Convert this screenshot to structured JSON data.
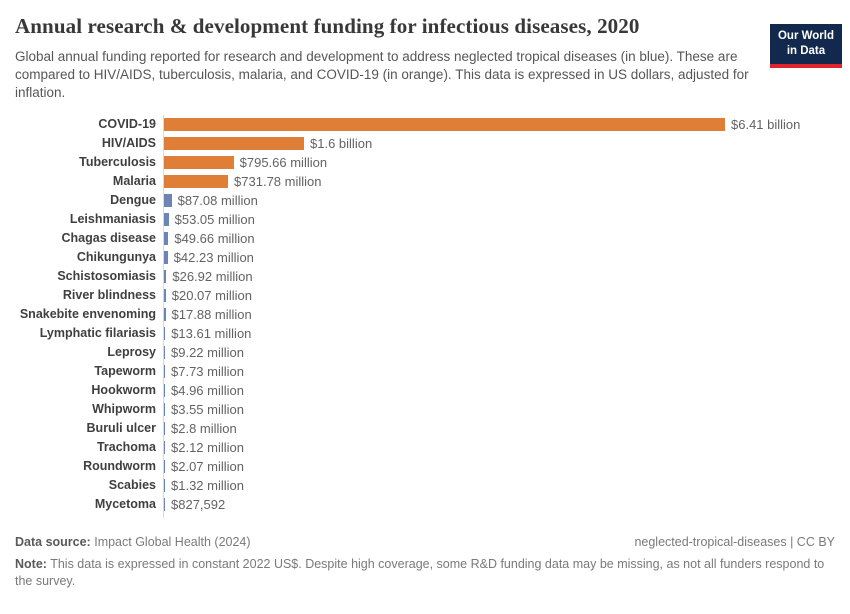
{
  "header": {
    "title": "Annual research & development funding for infectious diseases, 2020",
    "subtitle": "Global annual funding reported for research and development to address neglected tropical diseases (in blue). These are compared to HIV/AIDS, tuberculosis, malaria, and COVID-19 (in orange). This data is expressed in US dollars, adjusted for inflation.",
    "logo": {
      "line1": "Our World",
      "line2": "in Data"
    }
  },
  "chart_data": {
    "type": "bar",
    "orientation": "horizontal",
    "title": "Annual research & development funding for infectious diseases, 2020",
    "unit": "constant 2022 US$",
    "xlim_usd_millions": [
      0,
      6410
    ],
    "grid": false,
    "legend": "none",
    "colors": {
      "comparison_orange": "#de7e37",
      "ntd_blue": "#6d84b6"
    },
    "series": [
      {
        "category": "COVID-19",
        "value_usd_millions": 6410,
        "label": "$6.41 billion",
        "color": "orange"
      },
      {
        "category": "HIV/AIDS",
        "value_usd_millions": 1600,
        "label": "$1.6 billion",
        "color": "orange"
      },
      {
        "category": "Tuberculosis",
        "value_usd_millions": 795.66,
        "label": "$795.66 million",
        "color": "orange"
      },
      {
        "category": "Malaria",
        "value_usd_millions": 731.78,
        "label": "$731.78 million",
        "color": "orange"
      },
      {
        "category": "Dengue",
        "value_usd_millions": 87.08,
        "label": "$87.08 million",
        "color": "blue"
      },
      {
        "category": "Leishmaniasis",
        "value_usd_millions": 53.05,
        "label": "$53.05 million",
        "color": "blue"
      },
      {
        "category": "Chagas disease",
        "value_usd_millions": 49.66,
        "label": "$49.66 million",
        "color": "blue"
      },
      {
        "category": "Chikungunya",
        "value_usd_millions": 42.23,
        "label": "$42.23 million",
        "color": "blue"
      },
      {
        "category": "Schistosomiasis",
        "value_usd_millions": 26.92,
        "label": "$26.92 million",
        "color": "blue"
      },
      {
        "category": "River blindness",
        "value_usd_millions": 20.07,
        "label": "$20.07 million",
        "color": "blue"
      },
      {
        "category": "Snakebite envenoming",
        "value_usd_millions": 17.88,
        "label": "$17.88 million",
        "color": "blue"
      },
      {
        "category": "Lymphatic filariasis",
        "value_usd_millions": 13.61,
        "label": "$13.61 million",
        "color": "blue"
      },
      {
        "category": "Leprosy",
        "value_usd_millions": 9.22,
        "label": "$9.22 million",
        "color": "blue"
      },
      {
        "category": "Tapeworm",
        "value_usd_millions": 7.73,
        "label": "$7.73 million",
        "color": "blue"
      },
      {
        "category": "Hookworm",
        "value_usd_millions": 4.96,
        "label": "$4.96 million",
        "color": "blue"
      },
      {
        "category": "Whipworm",
        "value_usd_millions": 3.55,
        "label": "$3.55 million",
        "color": "blue"
      },
      {
        "category": "Buruli ulcer",
        "value_usd_millions": 2.8,
        "label": "$2.8 million",
        "color": "blue"
      },
      {
        "category": "Trachoma",
        "value_usd_millions": 2.12,
        "label": "$2.12 million",
        "color": "blue"
      },
      {
        "category": "Roundworm",
        "value_usd_millions": 2.07,
        "label": "$2.07 million",
        "color": "blue"
      },
      {
        "category": "Scabies",
        "value_usd_millions": 1.32,
        "label": "$1.32 million",
        "color": "blue"
      },
      {
        "category": "Mycetoma",
        "value_usd_millions": 0.827592,
        "label": "$827,592",
        "color": "blue"
      }
    ]
  },
  "footer": {
    "source_label": "Data source:",
    "source_value": "Impact Global Health (2024)",
    "license": "neglected-tropical-diseases | CC BY",
    "note_label": "Note:",
    "note_value": "This data is expressed in constant 2022 US$. Despite high coverage, some R&D funding data may be missing, as not all funders respond to the survey."
  }
}
